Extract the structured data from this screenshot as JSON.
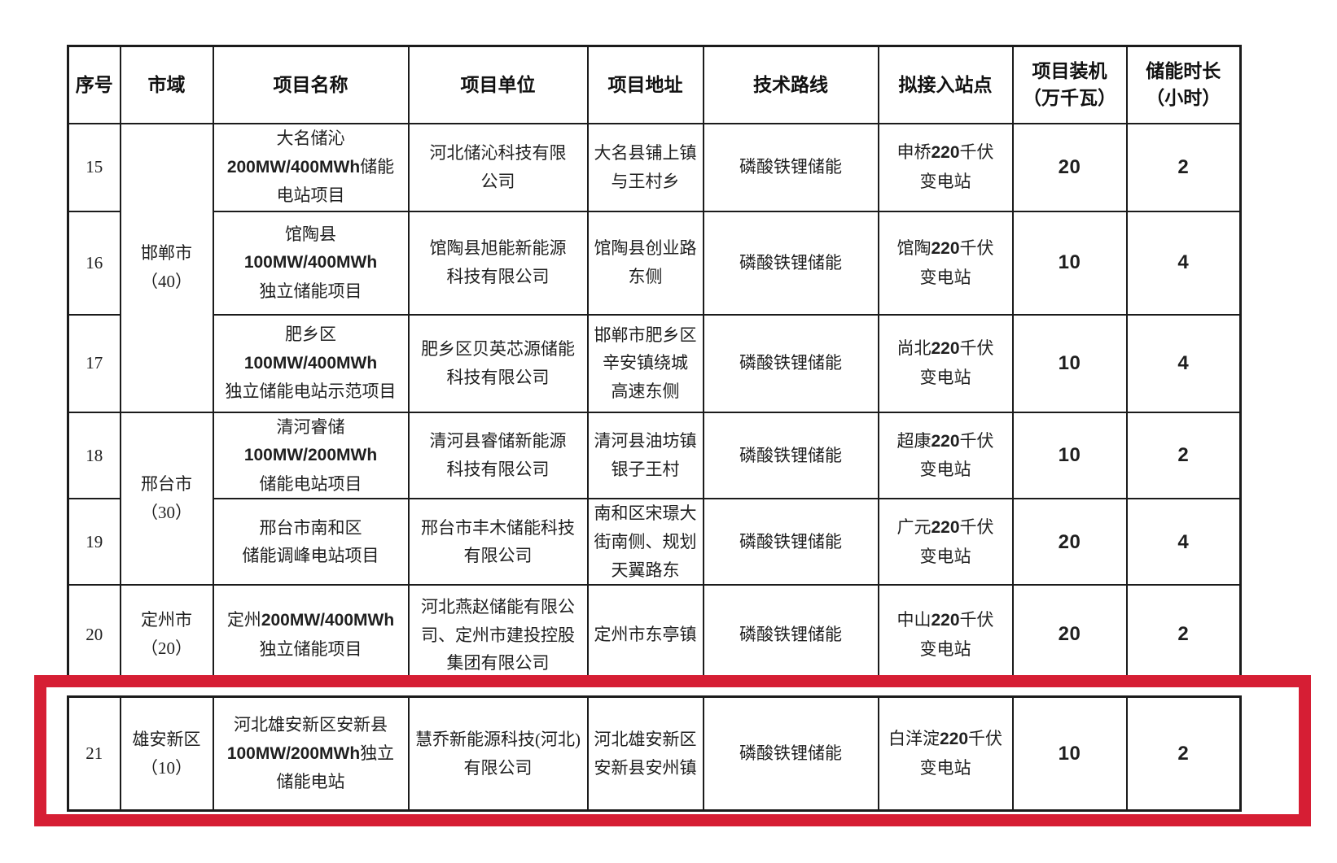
{
  "table": {
    "header": {
      "no": "序号",
      "city": "市域",
      "name": "项目名称",
      "unit": "项目单位",
      "address": "项目地址",
      "tech": "技术路线",
      "station": "拟接入站点",
      "capacity": [
        "项目装机",
        "（万千瓦）"
      ],
      "duration": [
        "储能时长",
        "（小时）"
      ]
    },
    "rows": [
      {
        "no": "15",
        "city": [
          "邯郸市",
          "（40）"
        ],
        "name": [
          "大名储沁",
          "200MW/400MWh储能",
          "电站项目"
        ],
        "unit": [
          "河北储沁科技有限",
          "公司"
        ],
        "address": [
          "大名县铺上镇",
          "与王村乡"
        ],
        "tech": "磷酸铁锂储能",
        "station": [
          "申桥220千伏",
          "变电站"
        ],
        "capacity": "20",
        "duration": "2"
      },
      {
        "no": "16",
        "name": [
          "馆陶县",
          "100MW/400MWh",
          "独立储能项目"
        ],
        "unit": [
          "馆陶县旭能新能源",
          "科技有限公司"
        ],
        "address": [
          "馆陶县创业路",
          "东侧"
        ],
        "tech": "磷酸铁锂储能",
        "station": [
          "馆陶220千伏",
          "变电站"
        ],
        "capacity": "10",
        "duration": "4"
      },
      {
        "no": "17",
        "name": [
          "肥乡区",
          "100MW/400MWh",
          "独立储能电站示范项目"
        ],
        "unit": [
          "肥乡区贝英芯源储能",
          "科技有限公司"
        ],
        "address": [
          "邯郸市肥乡区",
          "辛安镇绕城",
          "高速东侧"
        ],
        "tech": "磷酸铁锂储能",
        "station": [
          "尚北220千伏",
          "变电站"
        ],
        "capacity": "10",
        "duration": "4"
      },
      {
        "no": "18",
        "city": [
          "邢台市",
          "（30）"
        ],
        "name": [
          "清河睿储",
          "100MW/200MWh",
          "储能电站项目"
        ],
        "unit": [
          "清河县睿储新能源",
          "科技有限公司"
        ],
        "address": [
          "清河县油坊镇",
          "银子王村"
        ],
        "tech": "磷酸铁锂储能",
        "station": [
          "超康220千伏",
          "变电站"
        ],
        "capacity": "10",
        "duration": "2"
      },
      {
        "no": "19",
        "name": [
          "邢台市南和区",
          "储能调峰电站项目"
        ],
        "unit": [
          "邢台市丰木储能科技",
          "有限公司"
        ],
        "address": [
          "南和区宋璟大",
          "街南侧、规划",
          "天翼路东"
        ],
        "tech": "磷酸铁锂储能",
        "station": [
          "广元220千伏",
          "变电站"
        ],
        "capacity": "20",
        "duration": "4"
      },
      {
        "no": "20",
        "city": [
          "定州市",
          "（20）"
        ],
        "name": [
          "定州200MW/400MWh",
          "独立储能项目"
        ],
        "unit": [
          "河北燕赵储能有限公",
          "司、定州市建投控股",
          "集团有限公司"
        ],
        "address": [
          "定州市东亭镇"
        ],
        "tech": "磷酸铁锂储能",
        "station": [
          "中山220千伏",
          "变电站"
        ],
        "capacity": "20",
        "duration": "2"
      },
      {
        "no": "21",
        "city": [
          "雄安新区",
          "（10）"
        ],
        "name": [
          "河北雄安新区安新县",
          "100MW/200MWh独立",
          "储能电站"
        ],
        "unit": [
          "慧乔新能源科技(河北)",
          "有限公司"
        ],
        "address": [
          "河北雄安新区",
          "安新县安州镇"
        ],
        "tech": "磷酸铁锂储能",
        "station": [
          "白洋淀220千伏",
          "变电站"
        ],
        "capacity": "10",
        "duration": "2"
      }
    ]
  },
  "highlight": {
    "color": "#d61e34"
  }
}
